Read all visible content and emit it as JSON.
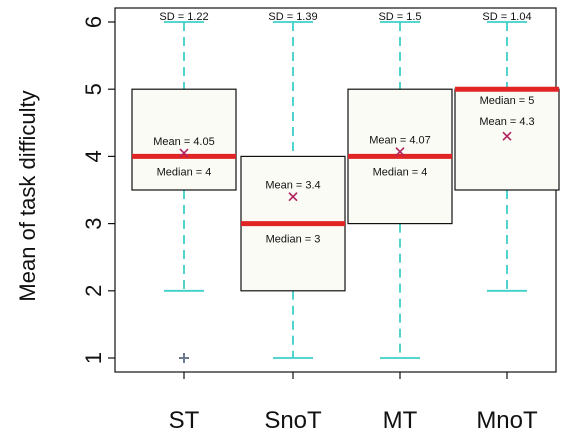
{
  "chart_data": {
    "type": "box",
    "title": "",
    "xlabel": "",
    "ylabel": "Mean of task difficulty",
    "ylim": [
      0.8,
      6.25
    ],
    "yticks": [
      "1",
      "2",
      "3",
      "4",
      "5",
      "6"
    ],
    "grid": false,
    "colors": {
      "box_fill": "#fbfbf6",
      "whisker": "#3fd0c9",
      "median": "#e12424",
      "mean_marker": "#b0215f",
      "outlier": "#6b7b8e",
      "axis": "#111111"
    },
    "categories": [
      "ST",
      "SnoT",
      "MT",
      "MnoT"
    ],
    "boxes": [
      {
        "category": "ST",
        "whisker_low": 2,
        "q1": 3.5,
        "median": 4,
        "q3": 5,
        "whisker_high": 6,
        "mean": 4.05,
        "outliers": [
          1
        ],
        "sd_label": "SD = 1.22",
        "mean_label": "Mean = 4.05",
        "median_label": "Median = 4"
      },
      {
        "category": "SnoT",
        "whisker_low": 1,
        "q1": 2,
        "median": 3,
        "q3": 4,
        "whisker_high": 6,
        "mean": 3.4,
        "outliers": [],
        "sd_label": "SD = 1.39",
        "mean_label": "Mean = 3.4",
        "median_label": "Median = 3"
      },
      {
        "category": "MT",
        "whisker_low": 1,
        "q1": 3,
        "median": 4,
        "q3": 5,
        "whisker_high": 6,
        "mean": 4.07,
        "outliers": [],
        "sd_label": "SD = 1.5",
        "mean_label": "Mean = 4.07",
        "median_label": "Median = 4"
      },
      {
        "category": "MnoT",
        "whisker_low": 2,
        "q1": 3.5,
        "median": 5,
        "q3": 5,
        "whisker_high": 6,
        "mean": 4.3,
        "outliers": [],
        "sd_label": "SD = 1.04",
        "mean_label": "Mean = 4.3",
        "median_label": "Median = 5"
      }
    ]
  }
}
